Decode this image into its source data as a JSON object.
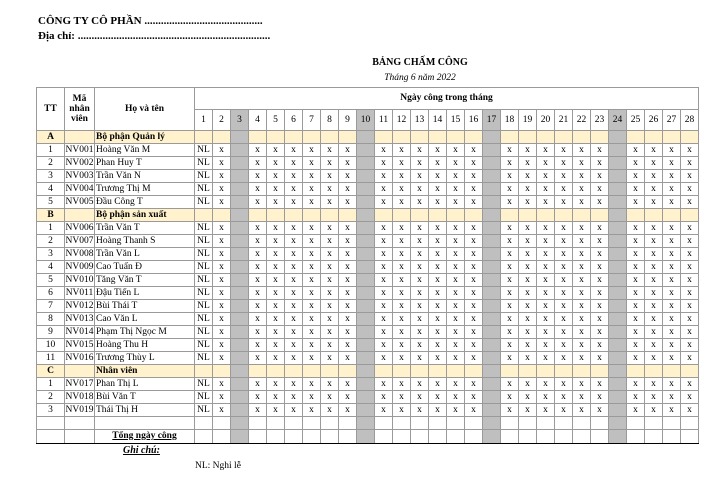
{
  "header": {
    "company": "CÔNG TY CÔ PHẦN ...........................................",
    "address": "Địa chỉ: ......................................................................",
    "title": "BẢNG CHẤM CÔNG",
    "subtitle": "Tháng 6 năm 2022"
  },
  "table": {
    "columns": {
      "tt": "TT",
      "code": "Mã nhân viên",
      "name": "Họ và tên",
      "days_group": "Ngày công trong tháng"
    },
    "days": [
      1,
      2,
      3,
      4,
      5,
      6,
      7,
      8,
      9,
      10,
      11,
      12,
      13,
      14,
      15,
      16,
      17,
      18,
      19,
      20,
      21,
      22,
      23,
      24,
      25,
      26,
      27,
      28
    ],
    "off_days": [
      3,
      10,
      17,
      24
    ],
    "sections": [
      {
        "letter": "A",
        "name": "Bộ phận Quản lý",
        "rows": [
          {
            "tt": 1,
            "code": "NV001",
            "name": "Hoàng Văn M",
            "marks": [
              "NL",
              "x",
              null,
              "x",
              "x",
              "x",
              "x",
              "x",
              "x",
              null,
              "x",
              "x",
              "x",
              "x",
              "x",
              "x",
              null,
              "x",
              "x",
              "x",
              "x",
              "x",
              "x",
              null,
              "x",
              "x",
              "x",
              "x"
            ]
          },
          {
            "tt": 2,
            "code": "NV002",
            "name": "Phan Huy T",
            "marks": [
              "NL",
              "x",
              null,
              "x",
              "x",
              "x",
              "x",
              "x",
              "x",
              null,
              "x",
              "x",
              "x",
              "x",
              "x",
              "x",
              null,
              "x",
              "x",
              "x",
              "x",
              "x",
              "x",
              null,
              "x",
              "x",
              "x",
              "x"
            ]
          },
          {
            "tt": 3,
            "code": "NV003",
            "name": "Trần Văn N",
            "marks": [
              "NL",
              "x",
              null,
              "x",
              "x",
              "x",
              "x",
              "x",
              "x",
              null,
              "x",
              "x",
              "x",
              "x",
              "x",
              "x",
              null,
              "x",
              "x",
              "x",
              "x",
              "x",
              "x",
              null,
              "x",
              "x",
              "x",
              "x"
            ]
          },
          {
            "tt": 4,
            "code": "NV004",
            "name": "Trương Thị M",
            "marks": [
              "NL",
              "x",
              null,
              "x",
              "x",
              "x",
              "x",
              "x",
              "x",
              null,
              "x",
              "x",
              "x",
              "x",
              "x",
              "x",
              null,
              "x",
              "x",
              "x",
              "x",
              "x",
              "x",
              null,
              "x",
              "x",
              "x",
              "x"
            ]
          },
          {
            "tt": 5,
            "code": "NV005",
            "name": "Đầu Công T",
            "marks": [
              "NL",
              "x",
              null,
              "x",
              "x",
              "x",
              "x",
              "x",
              "x",
              null,
              "x",
              "x",
              "x",
              "x",
              "x",
              "x",
              null,
              "x",
              "x",
              "x",
              "x",
              "x",
              "x",
              null,
              "x",
              "x",
              "x",
              "x"
            ]
          }
        ]
      },
      {
        "letter": "B",
        "name": "Bộ phận sản xuất",
        "rows": [
          {
            "tt": 1,
            "code": "NV006",
            "name": "Trần Văn T",
            "marks": [
              "NL",
              "x",
              null,
              "x",
              "x",
              "x",
              "x",
              "x",
              "x",
              null,
              "x",
              "x",
              "x",
              "x",
              "x",
              "x",
              null,
              "x",
              "x",
              "x",
              "x",
              "x",
              "x",
              null,
              "x",
              "x",
              "x",
              "x"
            ]
          },
          {
            "tt": 2,
            "code": "NV007",
            "name": "Hoàng Thanh S",
            "marks": [
              "NL",
              "x",
              null,
              "x",
              "x",
              "x",
              "x",
              "x",
              "x",
              null,
              "x",
              "x",
              "x",
              "x",
              "x",
              "x",
              null,
              "x",
              "x",
              "x",
              "x",
              "x",
              "x",
              null,
              "x",
              "x",
              "x",
              "x"
            ]
          },
          {
            "tt": 3,
            "code": "NV008",
            "name": "Trần Văn L",
            "marks": [
              "NL",
              "x",
              null,
              "x",
              "x",
              "x",
              "x",
              "x",
              "x",
              null,
              "x",
              "x",
              "x",
              "x",
              "x",
              "x",
              null,
              "x",
              "x",
              "x",
              "x",
              "x",
              "x",
              null,
              "x",
              "x",
              "x",
              "x"
            ]
          },
          {
            "tt": 4,
            "code": "NV009",
            "name": "Cao Tuấn Đ",
            "marks": [
              "NL",
              "x",
              null,
              "x",
              "x",
              "x",
              "x",
              "x",
              "x",
              null,
              "x",
              "x",
              "x",
              "x",
              "x",
              "x",
              null,
              "x",
              "x",
              "x",
              "x",
              "x",
              "x",
              null,
              "x",
              "x",
              "x",
              "x"
            ]
          },
          {
            "tt": 5,
            "code": "NV010",
            "name": "Tăng Văn T",
            "marks": [
              "NL",
              "x",
              null,
              "x",
              "x",
              "x",
              "x",
              "x",
              "x",
              null,
              "x",
              "x",
              "x",
              "x",
              "x",
              "x",
              null,
              "x",
              "x",
              "x",
              "x",
              "x",
              "x",
              null,
              "x",
              "x",
              "x",
              "x"
            ]
          },
          {
            "tt": 6,
            "code": "NV011",
            "name": "Đậu Tiến L",
            "marks": [
              "NL",
              "x",
              null,
              "x",
              "x",
              "x",
              "x",
              "x",
              "x",
              null,
              "x",
              "x",
              "x",
              "x",
              "x",
              "x",
              null,
              "x",
              "x",
              "x",
              "x",
              "x",
              "x",
              null,
              "x",
              "x",
              "x",
              "x"
            ]
          },
          {
            "tt": 7,
            "code": "NV012",
            "name": "Bùi Thái T",
            "marks": [
              "NL",
              "x",
              null,
              "x",
              "x",
              "x",
              "x",
              "x",
              "x",
              null,
              "x",
              "x",
              "x",
              "x",
              "x",
              "x",
              null,
              "x",
              "x",
              "x",
              "x",
              "x",
              "x",
              null,
              "x",
              "x",
              "x",
              "x"
            ]
          },
          {
            "tt": 8,
            "code": "NV013",
            "name": "Cao Văn L",
            "marks": [
              "NL",
              "x",
              null,
              "x",
              "x",
              "x",
              "x",
              "x",
              "x",
              null,
              "x",
              "x",
              "x",
              "x",
              "x",
              "x",
              null,
              "x",
              "x",
              "x",
              "x",
              "x",
              "x",
              null,
              "x",
              "x",
              "x",
              "x"
            ]
          },
          {
            "tt": 9,
            "code": "NV014",
            "name": "Phạm Thị Ngọc M",
            "marks": [
              "NL",
              "x",
              null,
              "x",
              "x",
              "x",
              "x",
              "x",
              "x",
              null,
              "x",
              "x",
              "x",
              "x",
              "x",
              "x",
              null,
              "x",
              "x",
              "x",
              "x",
              "x",
              "x",
              null,
              "x",
              "x",
              "x",
              "x"
            ]
          },
          {
            "tt": 10,
            "code": "NV015",
            "name": "Hoàng Thu H",
            "marks": [
              "NL",
              "x",
              null,
              "x",
              "x",
              "x",
              "x",
              "x",
              "x",
              null,
              "x",
              "x",
              "x",
              "x",
              "x",
              "x",
              null,
              "x",
              "x",
              "x",
              "x",
              "x",
              "x",
              null,
              "x",
              "x",
              "x",
              "x"
            ]
          },
          {
            "tt": 11,
            "code": "NV016",
            "name": "Trương Thùy L",
            "marks": [
              "NL",
              "x",
              null,
              "x",
              "x",
              "x",
              "x",
              "x",
              "x",
              null,
              "x",
              "x",
              "x",
              "x",
              "x",
              "x",
              null,
              "x",
              "x",
              "x",
              "x",
              "x",
              "x",
              null,
              "x",
              "x",
              "x",
              "x"
            ]
          }
        ]
      },
      {
        "letter": "C",
        "name": "Nhân viên",
        "rows": [
          {
            "tt": 1,
            "code": "NV017",
            "name": "Phan Thị L",
            "marks": [
              "NL",
              "x",
              null,
              "x",
              "x",
              "x",
              "x",
              "x",
              "x",
              null,
              "x",
              "x",
              "x",
              "x",
              "x",
              "x",
              null,
              "x",
              "x",
              "x",
              "x",
              "x",
              "x",
              null,
              "x",
              "x",
              "x",
              "x"
            ]
          },
          {
            "tt": 2,
            "code": "NV018",
            "name": "Bùi Văn T",
            "marks": [
              "NL",
              "x",
              null,
              "x",
              "x",
              "x",
              "x",
              "x",
              "x",
              null,
              "x",
              "x",
              "x",
              "x",
              "x",
              "x",
              null,
              "x",
              "x",
              "x",
              "x",
              "x",
              "x",
              null,
              "x",
              "x",
              "x",
              "x"
            ]
          },
          {
            "tt": 3,
            "code": "NV019",
            "name": "Thái Thị H",
            "marks": [
              "NL",
              "x",
              null,
              "x",
              "x",
              "x",
              "x",
              "x",
              "x",
              null,
              "x",
              "x",
              "x",
              "x",
              "x",
              "x",
              null,
              "x",
              "x",
              "x",
              "x",
              "x",
              "x",
              null,
              "x",
              "x",
              "x",
              "x"
            ]
          }
        ]
      }
    ],
    "total_label": "Tổng ngày công"
  },
  "notes": {
    "title": "Ghi chú:",
    "items": [
      "NL: Nghỉ lễ"
    ]
  }
}
